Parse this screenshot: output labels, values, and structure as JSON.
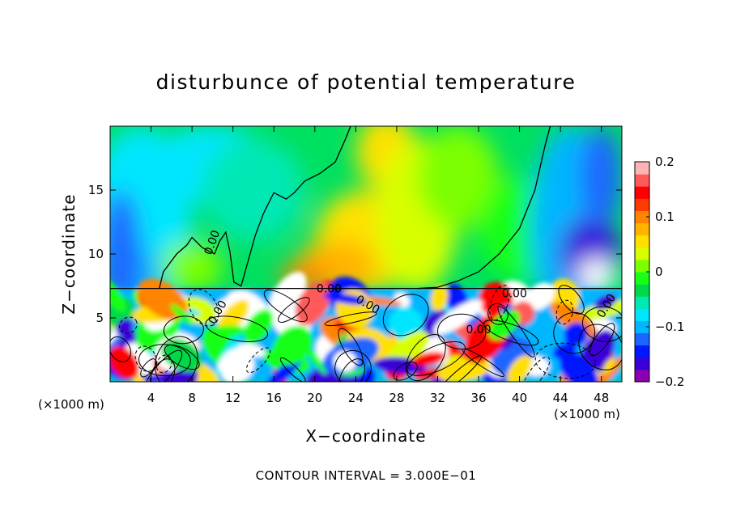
{
  "chart_data": {
    "type": "heatmap",
    "title": "disturbunce of potential temperature",
    "xlabel": "X−coordinate",
    "ylabel": "Z−coordinate",
    "x_unit_label": "(×1000 m)",
    "xlim": [
      0,
      50
    ],
    "ylim": [
      0,
      20
    ],
    "x_ticks": [
      "4",
      "8",
      "12",
      "16",
      "20",
      "24",
      "28",
      "32",
      "36",
      "40",
      "44",
      "48"
    ],
    "y_ticks": [
      "5",
      "10",
      "15"
    ],
    "colorbar": {
      "range": [
        -0.2,
        0.2
      ],
      "tick_labels": [
        "0.2",
        "0.1",
        "0",
        "−0.1",
        "−0.2"
      ],
      "colors": [
        "#8b00b0",
        "#3a00d8",
        "#0018ff",
        "#1a66ff",
        "#00b6ff",
        "#00e6ff",
        "#00e8b4",
        "#00d84a",
        "#18ff18",
        "#7cff00",
        "#d8ff00",
        "#ffe000",
        "#ffb400",
        "#ff8400",
        "#ff3a00",
        "#ff0000",
        "#ff5a5a",
        "#ffb4b4"
      ]
    },
    "contour_label": "0.00",
    "contour_interval_text": "CONTOUR INTERVAL = 3.000E−01",
    "zero_line": [
      [
        4.8,
        7.3
      ],
      [
        5.2,
        8.6
      ],
      [
        6.5,
        10.0
      ],
      [
        7.5,
        10.7
      ],
      [
        8.0,
        11.3
      ],
      [
        9.0,
        10.5
      ],
      [
        10.2,
        10.0
      ],
      [
        10.7,
        11.0
      ],
      [
        11.3,
        11.7
      ],
      [
        11.7,
        10.2
      ],
      [
        12.1,
        7.8
      ],
      [
        12.8,
        7.5
      ],
      [
        13.5,
        9.5
      ],
      [
        14.2,
        11.5
      ],
      [
        15.0,
        13.2
      ],
      [
        16.0,
        14.8
      ],
      [
        17.2,
        14.3
      ],
      [
        18.0,
        14.8
      ],
      [
        19.0,
        15.7
      ],
      [
        20.5,
        16.3
      ],
      [
        22.0,
        17.2
      ],
      [
        23.0,
        19.0
      ],
      [
        23.5,
        20.0
      ]
    ],
    "zero_line_2": [
      [
        43.0,
        20.0
      ],
      [
        42.5,
        18.5
      ],
      [
        41.5,
        15.0
      ],
      [
        40.0,
        12.0
      ],
      [
        38.0,
        10.0
      ],
      [
        36.0,
        8.6
      ],
      [
        34.0,
        7.9
      ],
      [
        32.0,
        7.4
      ],
      [
        30.0,
        7.3
      ]
    ]
  }
}
